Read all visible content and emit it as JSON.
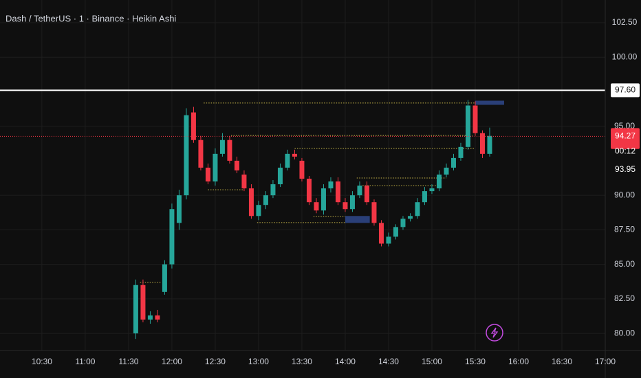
{
  "chart_data": {
    "type": "candlestick",
    "title": "Dash / TetherUS · 1 · Binance · Heikin Ashi",
    "up_color": "#26a69a",
    "down_color": "#f23645",
    "grid": true,
    "xlim": [
      "10:01",
      "17:00"
    ],
    "ylim": [
      78.76,
      104.14
    ],
    "xticks": [
      "10:30",
      "11:00",
      "11:30",
      "12:00",
      "12:30",
      "13:00",
      "13:30",
      "14:00",
      "14:30",
      "15:00",
      "15:30",
      "16:00",
      "16:30",
      "17:00"
    ],
    "yticks": [
      {
        "value": 80,
        "label": "80.00"
      },
      {
        "value": 82.5,
        "label": "82.50"
      },
      {
        "value": 85,
        "label": "85.00"
      },
      {
        "value": 87.5,
        "label": "87.50"
      },
      {
        "value": 90,
        "label": "90.00"
      },
      {
        "value": 95,
        "label": "95.00"
      },
      {
        "value": 100,
        "label": "100.00"
      },
      {
        "value": 102.5,
        "label": "102.50"
      }
    ],
    "x": [
      "11:35",
      "11:40",
      "11:45",
      "11:50",
      "11:55",
      "12:00",
      "12:05",
      "12:10",
      "12:15",
      "12:20",
      "12:25",
      "12:30",
      "12:35",
      "12:40",
      "12:45",
      "12:50",
      "12:55",
      "13:00",
      "13:05",
      "13:10",
      "13:15",
      "13:20",
      "13:25",
      "13:30",
      "13:35",
      "13:40",
      "13:45",
      "13:50",
      "13:55",
      "14:00",
      "14:05",
      "14:10",
      "14:15",
      "14:20",
      "14:25",
      "14:30",
      "14:35",
      "14:40",
      "14:45",
      "14:50",
      "14:55",
      "15:00",
      "15:05",
      "15:10",
      "15:15",
      "15:20",
      "15:25",
      "15:30",
      "15:35",
      "15:40"
    ],
    "open": [
      80.0,
      83.5,
      81.0,
      81.3,
      83.0,
      85.0,
      88.0,
      90.0,
      96.0,
      94.0,
      92.0,
      91.0,
      93.0,
      94.0,
      92.5,
      91.5,
      90.5,
      88.5,
      89.3,
      90.0,
      90.8,
      92.0,
      93.0,
      92.5,
      91.2,
      89.5,
      88.9,
      90.5,
      91.0,
      89.5,
      89.0,
      90.0,
      90.7,
      89.5,
      88.0,
      86.5,
      87.0,
      87.7,
      88.3,
      88.5,
      89.5,
      90.3,
      90.5,
      91.5,
      92.0,
      92.7,
      93.5,
      96.5,
      94.5,
      93.0
    ],
    "high": [
      83.9,
      83.9,
      81.6,
      81.7,
      85.3,
      89.4,
      90.4,
      96.3,
      96.4,
      94.3,
      92.3,
      93.4,
      94.5,
      94.3,
      92.8,
      91.8,
      90.8,
      89.6,
      90.3,
      91.1,
      92.3,
      93.3,
      93.3,
      92.7,
      91.4,
      89.8,
      90.8,
      91.3,
      91.3,
      89.8,
      90.3,
      91.0,
      91.0,
      89.7,
      88.2,
      87.3,
      87.9,
      88.5,
      88.7,
      89.8,
      90.6,
      90.8,
      91.8,
      92.3,
      93.0,
      93.8,
      96.9,
      96.8,
      94.7,
      94.9
    ],
    "low": [
      79.6,
      80.8,
      80.7,
      80.8,
      82.8,
      84.7,
      87.5,
      89.7,
      93.8,
      91.8,
      90.8,
      90.7,
      92.8,
      92.3,
      91.6,
      90.3,
      88.3,
      88.2,
      89.0,
      89.8,
      90.6,
      91.8,
      92.6,
      91.0,
      89.3,
      88.7,
      88.6,
      90.2,
      89.3,
      88.8,
      88.8,
      89.8,
      89.3,
      87.8,
      86.3,
      86.3,
      86.8,
      87.5,
      88.1,
      88.3,
      89.3,
      90.1,
      90.3,
      91.3,
      91.8,
      92.5,
      93.3,
      94.3,
      92.7,
      92.8
    ],
    "close": [
      83.5,
      81.0,
      81.3,
      81.0,
      85.0,
      89.0,
      90.0,
      95.8,
      94.0,
      92.0,
      91.0,
      93.0,
      94.0,
      92.5,
      91.8,
      90.5,
      88.5,
      89.3,
      90.0,
      90.8,
      92.0,
      93.0,
      92.8,
      91.2,
      89.5,
      88.9,
      90.5,
      91.0,
      89.5,
      89.0,
      90.0,
      90.7,
      89.5,
      88.0,
      86.5,
      87.0,
      87.7,
      88.3,
      88.5,
      89.5,
      90.3,
      90.5,
      91.5,
      92.0,
      92.7,
      93.5,
      96.5,
      94.5,
      93.0,
      94.3
    ],
    "levels": [
      {
        "price": 96.68,
        "start": "12:22",
        "end": "15:30"
      },
      {
        "price": 94.33,
        "start": "12:41",
        "end": "15:28"
      },
      {
        "price": 93.39,
        "start": "13:25",
        "end": "15:30"
      },
      {
        "price": 91.25,
        "start": "14:08",
        "end": "15:10"
      },
      {
        "price": 90.7,
        "start": "14:12",
        "end": "15:07"
      },
      {
        "price": 90.4,
        "start": "12:25",
        "end": "12:50"
      },
      {
        "price": 88.46,
        "start": "13:38",
        "end": "14:00"
      },
      {
        "price": 88.02,
        "start": "12:59",
        "end": "14:00"
      },
      {
        "price": 83.7,
        "start": "11:38",
        "end": "11:53"
      }
    ],
    "zones": [
      {
        "low": 96.55,
        "high": 96.85,
        "start": "15:30",
        "end": "15:50"
      },
      {
        "low": 88.0,
        "high": 88.5,
        "start": "14:00",
        "end": "14:17"
      }
    ],
    "price_line": {
      "value": 97.6,
      "label": "97.60"
    },
    "last_price": {
      "value": 94.27,
      "label": "94.27"
    },
    "countdown": "00:12",
    "marker_price": {
      "value": 93.95,
      "label": "93.95"
    }
  }
}
